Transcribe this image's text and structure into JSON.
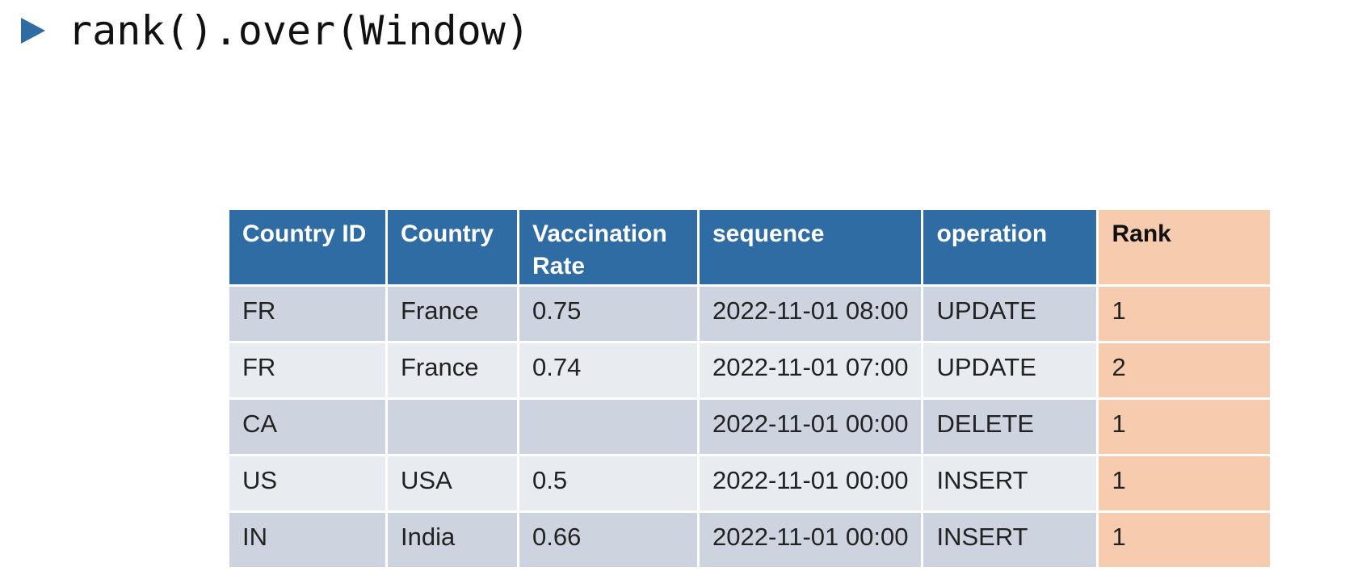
{
  "title": {
    "bullet_icon": "triangle-right-icon",
    "bullet_color": "#2e6ca3",
    "text": "rank().over(Window)"
  },
  "table": {
    "header_color": "#2e6ca3",
    "rank_column_color": "#f7cbad",
    "headers": [
      "Country ID",
      "Country",
      "Vaccination Rate",
      "sequence",
      "operation",
      "Rank"
    ],
    "rows": [
      [
        "FR",
        "France",
        "0.75",
        "2022-11-01 08:00",
        "UPDATE",
        "1"
      ],
      [
        "FR",
        "France",
        "0.74",
        "2022-11-01 07:00",
        "UPDATE",
        "2"
      ],
      [
        "CA",
        "",
        "",
        "2022-11-01 00:00",
        "DELETE",
        "1"
      ],
      [
        "US",
        "USA",
        "0.5",
        "2022-11-01 00:00",
        "INSERT",
        "1"
      ],
      [
        "IN",
        "India",
        "0.66",
        "2022-11-01 00:00",
        "INSERT",
        "1"
      ]
    ]
  }
}
